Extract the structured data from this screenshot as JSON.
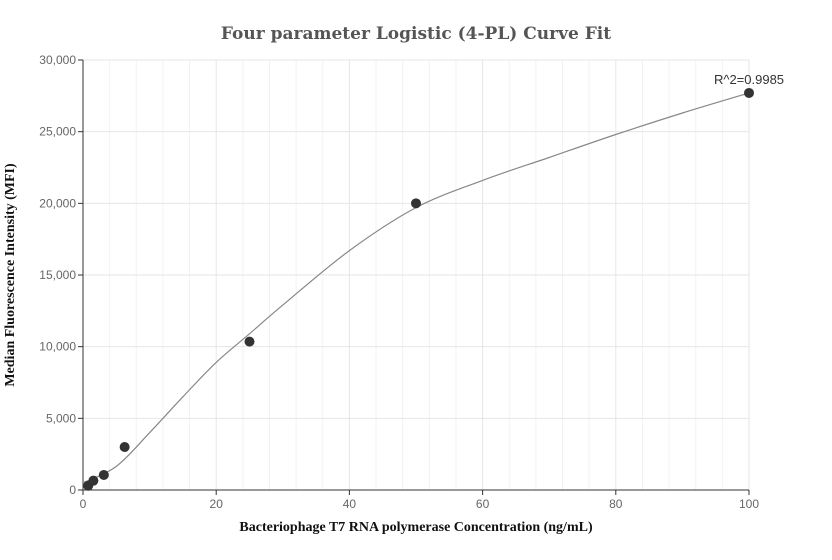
{
  "chart_data": {
    "type": "scatter",
    "title": "Four parameter Logistic (4-PL) Curve Fit",
    "xlabel": "Bacteriophage T7 RNA polymerase Concentration (ng/mL)",
    "ylabel": "Median Fluorescence Intensity (MFI)",
    "xlim": [
      0,
      100
    ],
    "ylim": [
      0,
      30000
    ],
    "x_ticks": [
      0,
      20,
      40,
      60,
      80,
      100
    ],
    "x_tick_labels": [
      "0",
      "20",
      "40",
      "60",
      "80",
      "100"
    ],
    "y_ticks": [
      0,
      5000,
      10000,
      15000,
      20000,
      25000,
      30000
    ],
    "y_tick_labels": [
      "0",
      "5,000",
      "10,000",
      "15,000",
      "20,000",
      "25,000",
      "30,000"
    ],
    "grid": true,
    "points": [
      {
        "x": 0.78,
        "y": 300
      },
      {
        "x": 1.56,
        "y": 650
      },
      {
        "x": 3.13,
        "y": 1050
      },
      {
        "x": 6.25,
        "y": 3000
      },
      {
        "x": 25,
        "y": 10350
      },
      {
        "x": 50,
        "y": 20000
      },
      {
        "x": 100,
        "y": 27700
      }
    ],
    "fit_curve": [
      {
        "x": 0,
        "y": 500
      },
      {
        "x": 5,
        "y": 1650
      },
      {
        "x": 10,
        "y": 4000
      },
      {
        "x": 15,
        "y": 6500
      },
      {
        "x": 20,
        "y": 8900
      },
      {
        "x": 25,
        "y": 10900
      },
      {
        "x": 30,
        "y": 12900
      },
      {
        "x": 40,
        "y": 16700
      },
      {
        "x": 50,
        "y": 19700
      },
      {
        "x": 60,
        "y": 21600
      },
      {
        "x": 70,
        "y": 23200
      },
      {
        "x": 80,
        "y": 24800
      },
      {
        "x": 90,
        "y": 26300
      },
      {
        "x": 100,
        "y": 27700
      }
    ],
    "annotation": "R^2=0.9985",
    "colors": {
      "point": "#333333",
      "curve": "#888888",
      "grid": "#e6e6e6",
      "minor_grid": "#f2f2f2",
      "axis": "#333333"
    }
  }
}
